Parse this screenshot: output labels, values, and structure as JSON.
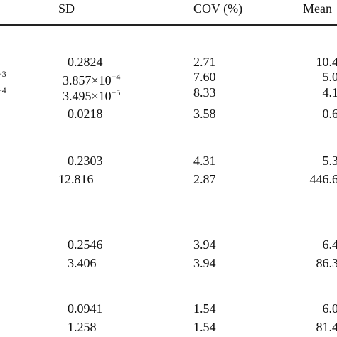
{
  "table": {
    "header": [
      "SD",
      "COV (%)",
      "Mean"
    ],
    "left_fragments": [
      "−3",
      "−4"
    ],
    "rows": [
      [
        {
          "base": "0.2824"
        },
        "2.71",
        "10.4"
      ],
      [
        {
          "base": "3.857×10",
          "exp": "−4"
        },
        "7.60",
        "5.0"
      ],
      [
        {
          "base": "3.495×10",
          "exp": "−5"
        },
        "8.33",
        "4.1"
      ],
      [
        {
          "base": "0.0218"
        },
        "3.58",
        "0.6"
      ],
      [
        {
          "base": "0.2303"
        },
        "4.31",
        "5.3"
      ],
      [
        {
          "base": "12.816"
        },
        "2.87",
        "446.6"
      ],
      [
        {
          "base": "0.2546"
        },
        "3.94",
        "6.4"
      ],
      [
        {
          "base": "3.406"
        },
        "3.94",
        "86.3"
      ],
      [
        {
          "base": "0.0941"
        },
        "1.54",
        "6.0"
      ],
      [
        {
          "base": "1.258"
        },
        "1.54",
        "81.4"
      ]
    ]
  }
}
